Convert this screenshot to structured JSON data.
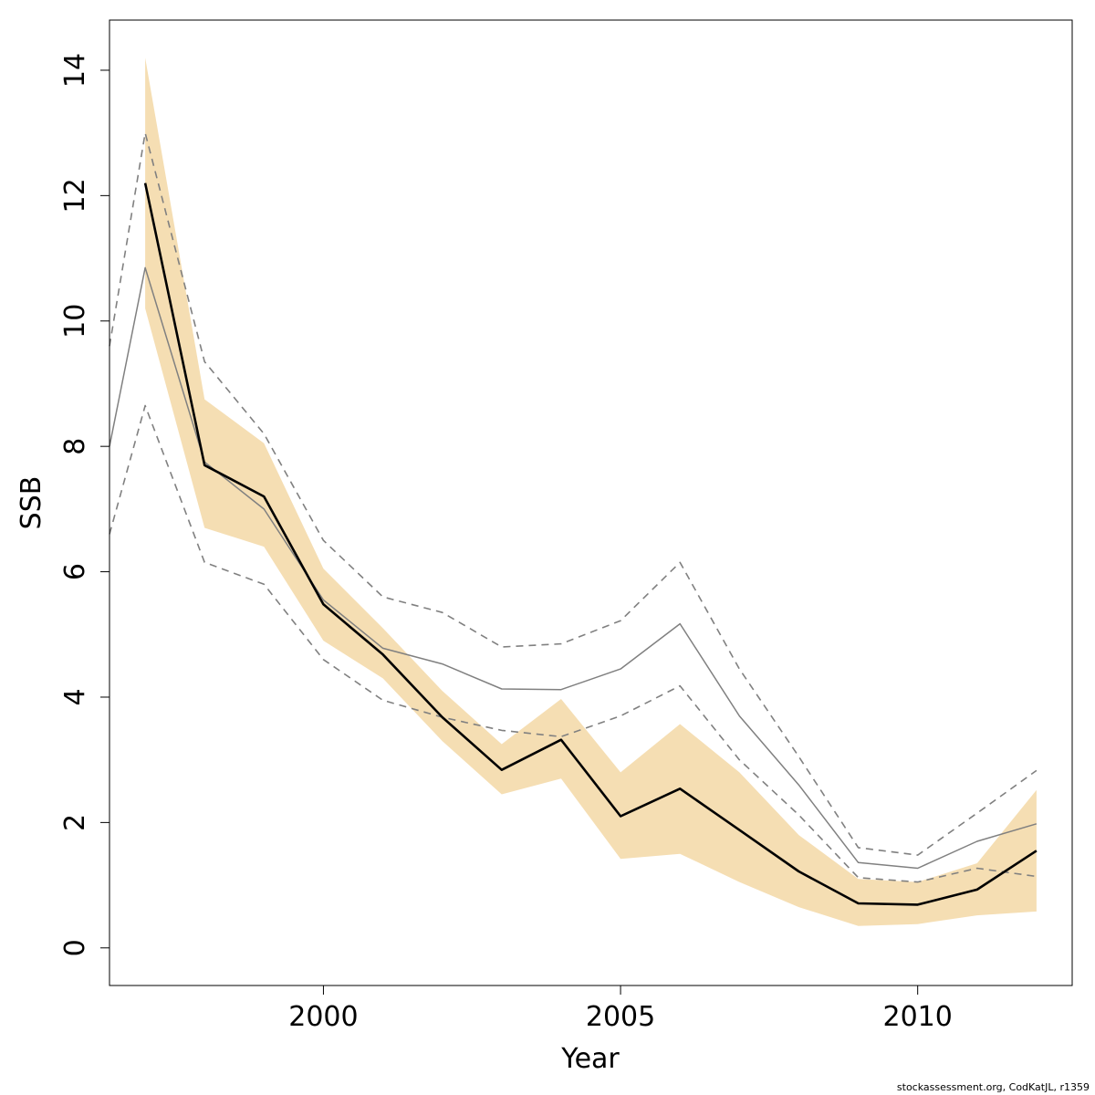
{
  "chart_data": {
    "type": "line",
    "title": "",
    "xlabel": "Year",
    "ylabel": "SSB",
    "xlim": [
      1996.4,
      2012.6
    ],
    "ylim": [
      -0.6,
      14.8
    ],
    "x_ticks": [
      2000,
      2005,
      2010
    ],
    "x_tick_labels": [
      "2000",
      "2005",
      "2010"
    ],
    "y_ticks": [
      0,
      2,
      4,
      6,
      8,
      10,
      12,
      14
    ],
    "y_tick_labels": [
      "0",
      "2",
      "4",
      "6",
      "8",
      "10",
      "12",
      "14"
    ],
    "grid": false,
    "legend": "none",
    "x": [
      1997,
      1998,
      1999,
      2000,
      2001,
      2002,
      2003,
      2004,
      2005,
      2006,
      2007,
      2008,
      2009,
      2010,
      2011,
      2012
    ],
    "band": {
      "lower": [
        10.2,
        6.7,
        6.4,
        4.9,
        4.3,
        3.3,
        2.45,
        2.7,
        1.42,
        1.5,
        1.05,
        0.65,
        0.35,
        0.38,
        0.52,
        0.58
      ],
      "upper": [
        14.2,
        8.75,
        8.05,
        6.05,
        5.1,
        4.1,
        3.25,
        3.97,
        2.8,
        3.57,
        2.8,
        1.8,
        1.1,
        1.05,
        1.35,
        2.52
      ],
      "color": "#f5deb3"
    },
    "series": [
      {
        "values": [
          12.2,
          7.7,
          7.2,
          5.48,
          4.68,
          3.68,
          2.84,
          3.32,
          2.1,
          2.54,
          1.88,
          1.22,
          0.71,
          0.69,
          0.93,
          1.55
        ],
        "color": "#000000",
        "style": "solid-thick"
      },
      {
        "x": [
          1996.4,
          1997,
          1998,
          1999,
          2000,
          2001,
          2002,
          2003,
          2004,
          2005,
          2006,
          2007,
          2008,
          2009,
          2010,
          2011,
          2012
        ],
        "values": [
          8.0,
          10.85,
          7.75,
          7.0,
          5.55,
          4.78,
          4.53,
          4.13,
          4.12,
          4.45,
          5.17,
          3.7,
          2.6,
          1.36,
          1.27,
          1.7,
          1.98
        ],
        "color": "#808080",
        "style": "solid-thin"
      },
      {
        "x": [
          1996.4,
          1997,
          1998,
          1999,
          2000,
          2001,
          2002,
          2003,
          2004,
          2005,
          2006,
          2007,
          2008,
          2009,
          2010,
          2011,
          2012
        ],
        "values": [
          9.6,
          13.0,
          9.35,
          8.2,
          6.5,
          5.6,
          5.35,
          4.8,
          4.85,
          5.22,
          6.15,
          4.45,
          3.05,
          1.6,
          1.48,
          2.15,
          2.83
        ],
        "color": "#808080",
        "style": "dashed"
      },
      {
        "x": [
          1996.4,
          1997,
          1998,
          1999,
          2000,
          2001,
          2002,
          2003,
          2004,
          2005,
          2006,
          2007,
          2008,
          2009,
          2010,
          2011,
          2012
        ],
        "values": [
          6.6,
          8.65,
          6.15,
          5.8,
          4.6,
          3.95,
          3.68,
          3.47,
          3.37,
          3.7,
          4.18,
          3.0,
          2.12,
          1.12,
          1.05,
          1.27,
          1.14
        ],
        "color": "#808080",
        "style": "dashed"
      }
    ]
  },
  "footer": {
    "credit": "stockassessment.org, CodKatJL, r1359"
  }
}
